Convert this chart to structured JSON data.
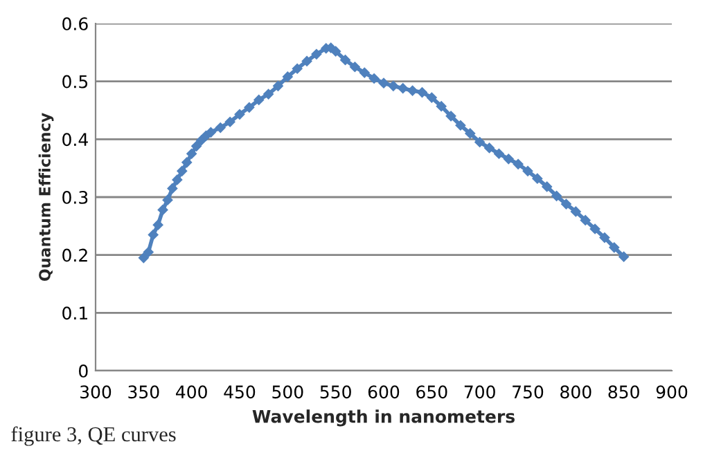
{
  "chart_data": {
    "type": "line",
    "xlabel": "Wavelength in nanometers",
    "ylabel": "Quantum Efficiency",
    "annotations": [
      "figure 3, QE curves"
    ],
    "x": [
      350,
      355,
      360,
      365,
      370,
      375,
      380,
      385,
      390,
      395,
      400,
      405,
      410,
      415,
      420,
      430,
      440,
      450,
      460,
      470,
      480,
      490,
      500,
      510,
      520,
      530,
      540,
      545,
      550,
      560,
      570,
      580,
      590,
      600,
      610,
      620,
      630,
      640,
      650,
      660,
      670,
      680,
      690,
      700,
      710,
      720,
      730,
      740,
      750,
      760,
      770,
      780,
      790,
      800,
      810,
      820,
      830,
      840,
      850
    ],
    "series": [
      {
        "color": "#4f81bd",
        "values": [
          0.195,
          0.205,
          0.235,
          0.252,
          0.278,
          0.295,
          0.315,
          0.33,
          0.345,
          0.36,
          0.375,
          0.388,
          0.398,
          0.406,
          0.412,
          0.42,
          0.43,
          0.443,
          0.455,
          0.468,
          0.478,
          0.492,
          0.508,
          0.522,
          0.535,
          0.547,
          0.557,
          0.558,
          0.552,
          0.537,
          0.525,
          0.515,
          0.505,
          0.497,
          0.492,
          0.488,
          0.484,
          0.481,
          0.472,
          0.457,
          0.44,
          0.424,
          0.41,
          0.395,
          0.385,
          0.375,
          0.366,
          0.357,
          0.345,
          0.332,
          0.318,
          0.302,
          0.288,
          0.275,
          0.26,
          0.245,
          0.23,
          0.213,
          0.197
        ]
      }
    ],
    "xlim": [
      300,
      900
    ],
    "xticks": [
      300,
      350,
      400,
      450,
      500,
      550,
      600,
      650,
      700,
      750,
      800,
      850,
      900
    ],
    "ylim": [
      0,
      0.6
    ],
    "yticks": [
      0,
      0.1,
      0.2,
      0.3,
      0.4,
      0.5,
      0.6
    ],
    "grid": "y",
    "marker": "diamond",
    "line_style": "solid",
    "legend": false
  }
}
